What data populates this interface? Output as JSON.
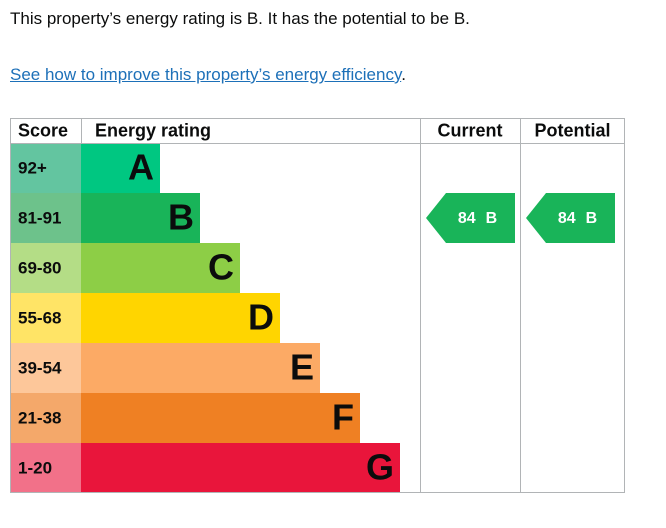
{
  "intro": "This property’s energy rating is B. It has the potential to be B.",
  "link": "See how to improve this property’s energy efficiency",
  "link_suffix": ".",
  "table": {
    "headers": {
      "score": "Score",
      "rating": "Energy rating",
      "current": "Current",
      "potential": "Potential"
    },
    "bands": [
      {
        "range": "92+",
        "letter": "A"
      },
      {
        "range": "81-91",
        "letter": "B"
      },
      {
        "range": "69-80",
        "letter": "C"
      },
      {
        "range": "55-68",
        "letter": "D"
      },
      {
        "range": "39-54",
        "letter": "E"
      },
      {
        "range": "21-38",
        "letter": "F"
      },
      {
        "range": "1-20",
        "letter": "G"
      }
    ],
    "current": {
      "score": 84,
      "band": "B"
    },
    "potential": {
      "score": 84,
      "band": "B"
    }
  }
}
